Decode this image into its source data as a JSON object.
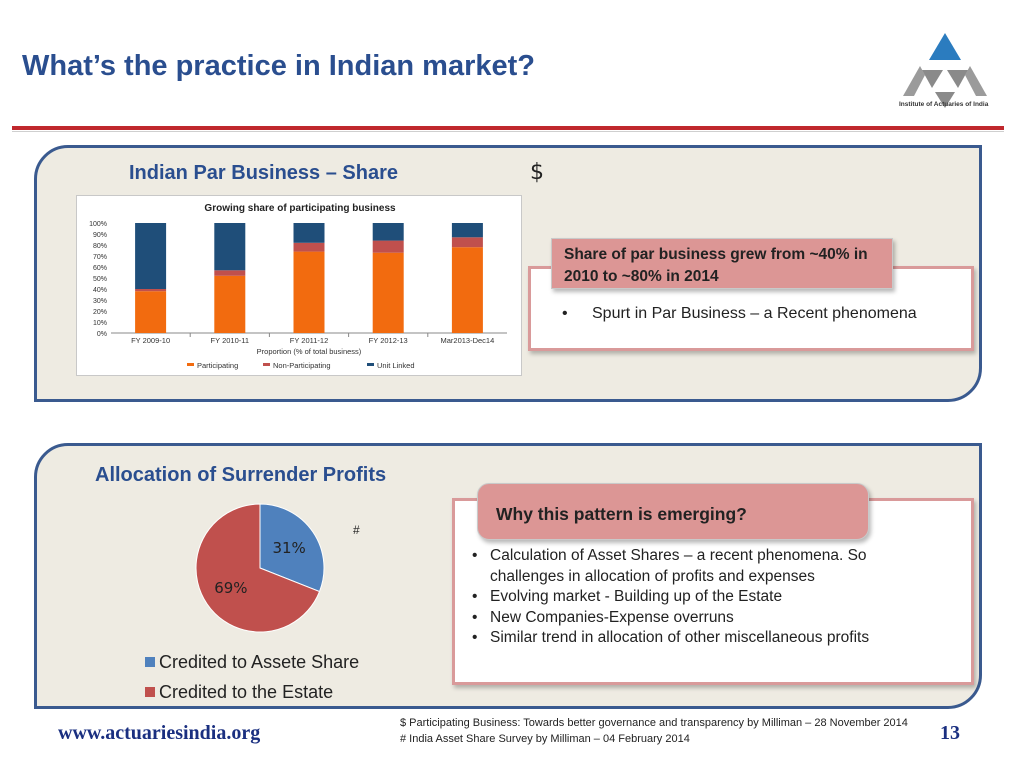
{
  "title": "What’s the practice in Indian market?",
  "logo": {
    "caption": "Institute of Actuaries of India"
  },
  "top_section": {
    "title": "Indian Par Business – Share",
    "marker": "$",
    "callout": "Share of par business grew from ~40% in 2010 to ~80% in 2014",
    "bullet": "Spurt in Par Business – a Recent phenomena"
  },
  "chart_data": [
    {
      "type": "bar",
      "stacked": true,
      "title": "Growing share of participating business",
      "xlabel": "Proportion (% of total business)",
      "ylabel": "",
      "ylim": [
        0,
        100
      ],
      "yticks": [
        "0%",
        "10%",
        "20%",
        "30%",
        "40%",
        "50%",
        "60%",
        "70%",
        "80%",
        "90%",
        "100%"
      ],
      "categories": [
        "FY 2009-10",
        "FY 2010-11",
        "FY 2011-12",
        "FY 2012-13",
        "Mar2013-Dec14"
      ],
      "series": [
        {
          "name": "Participating",
          "color": "#f26b0f",
          "values": [
            38,
            52,
            74,
            73,
            78
          ]
        },
        {
          "name": "Non-Participating",
          "color": "#c0504d",
          "values": [
            2,
            5,
            8,
            11,
            9
          ]
        },
        {
          "name": "Unit Linked",
          "color": "#1f4e79",
          "values": [
            60,
            43,
            18,
            16,
            13
          ]
        }
      ],
      "legend_position": "bottom",
      "grid": false
    },
    {
      "type": "pie",
      "title": "Allocation of Surrender Profits",
      "slices": [
        {
          "name": "Credited to Assete Share",
          "value": 31,
          "label": "31%",
          "color": "#4f81bd"
        },
        {
          "name": "Credited to the Estate",
          "value": 69,
          "label": "69%",
          "color": "#c0504d"
        }
      ],
      "legend_position": "bottom"
    }
  ],
  "bottom_section": {
    "title": "Allocation of Surrender Profits",
    "marker": "#",
    "callout": "Why this pattern is emerging?",
    "bullets": [
      "Calculation of Asset Shares – a recent phenomena. So challenges in allocation of profits and expenses",
      "Evolving market - Building up of the Estate",
      "New Companies-Expense overruns",
      "Similar trend in allocation of other miscellaneous profits"
    ]
  },
  "footer": {
    "url": "www.actuariesindia.org",
    "footnote1": "$  Participating Business: Towards better governance and transparency by Milliman – 28 November 2014",
    "footnote2": "# India Asset Share Survey by Milliman – 04 February 2014",
    "page_number": "13"
  },
  "colors": {
    "title_blue": "#2a4e8f",
    "rule_red": "#c0282d",
    "panel_border": "#3a5a8f",
    "callout_pink": "#dc9695"
  }
}
